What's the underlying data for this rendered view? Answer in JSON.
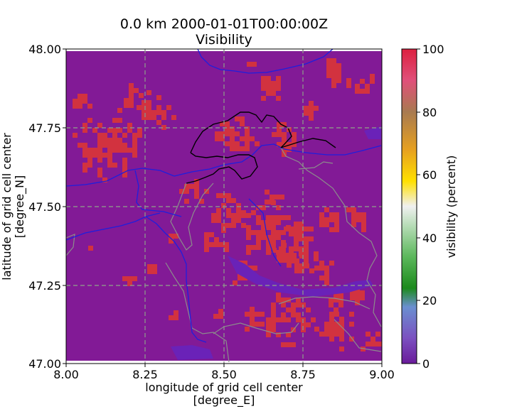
{
  "title": {
    "line1": "0.0 km 2000-01-01T00:00:00Z",
    "line2": "Visibility"
  },
  "map": {
    "xlabel_line1": "longitude of grid cell center",
    "xlabel_line2": "[degree_E]",
    "ylabel_line1": "latitude of grid cell center",
    "ylabel_line2": "[degree_N]",
    "xlim": [
      8.0,
      9.0
    ],
    "ylim": [
      47.0,
      48.0
    ],
    "xticks": [
      "8.00",
      "8.25",
      "8.50",
      "8.75",
      "9.00"
    ],
    "yticks": [
      "47.00",
      "47.25",
      "47.50",
      "47.75",
      "48.00"
    ],
    "gridlines": "dashed gray at each tick",
    "background_color": "#821a96",
    "patch_color": "#d2323f",
    "border_color": "#000000",
    "river_color": "#1f1fdc",
    "boundary_color": "#8c8c8c"
  },
  "colorbar": {
    "label": "visibility (percent)",
    "ticks": [
      "0",
      "20",
      "40",
      "60",
      "80",
      "100"
    ],
    "range": [
      0,
      100
    ],
    "colors": [
      "#6a1b9a",
      "#7b50c0",
      "#6a8fd0",
      "#1c8a1c",
      "#5cb85c",
      "#b8ddb8",
      "#f0f0f0",
      "#ffe000",
      "#e6a020",
      "#a87a50",
      "#e0507a",
      "#dc2040"
    ]
  }
}
